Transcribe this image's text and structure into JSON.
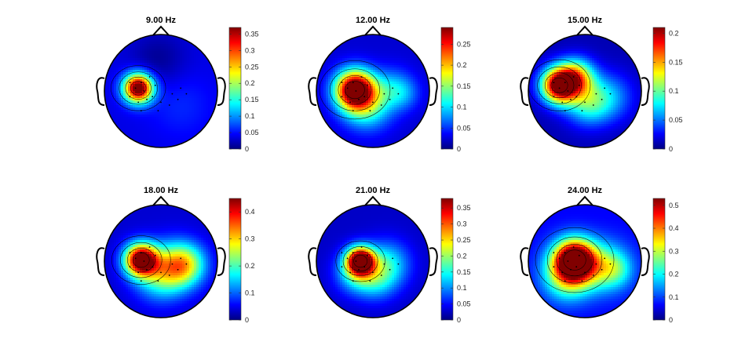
{
  "colors": {
    "colormap": "jet",
    "contour": "#000000",
    "outline": "#000000",
    "background": "#ffffff"
  },
  "chart_data": [
    {
      "type": "heatmap",
      "title": "9.00 Hz",
      "clim": [
        0,
        0.37
      ],
      "colorbar_ticks": [
        "0",
        "0.05",
        "0.1",
        "0.15",
        "0.2",
        "0.25",
        "0.3",
        "0.35"
      ],
      "colorbar_values": [
        0,
        0.05,
        0.1,
        0.15,
        0.2,
        0.25,
        0.3,
        0.35
      ],
      "peak_value": 0.37,
      "peak_location": "left central"
    },
    {
      "type": "heatmap",
      "title": "12.00 Hz",
      "clim": [
        0,
        0.29
      ],
      "colorbar_ticks": [
        "0",
        "0.05",
        "0.1",
        "0.15",
        "0.2",
        "0.25"
      ],
      "colorbar_values": [
        0,
        0.05,
        0.1,
        0.15,
        0.2,
        0.25
      ],
      "peak_value": 0.29,
      "peak_location": "left central"
    },
    {
      "type": "heatmap",
      "title": "15.00 Hz",
      "clim": [
        0,
        0.21
      ],
      "colorbar_ticks": [
        "0",
        "0.05",
        "0.1",
        "0.15",
        "0.2"
      ],
      "colorbar_values": [
        0,
        0.05,
        0.1,
        0.15,
        0.2
      ],
      "peak_value": 0.21,
      "peak_location": "left fronto-central"
    },
    {
      "type": "heatmap",
      "title": "18.00 Hz",
      "clim": [
        0,
        0.45
      ],
      "colorbar_ticks": [
        "0",
        "0.1",
        "0.2",
        "0.3",
        "0.4"
      ],
      "colorbar_values": [
        0,
        0.1,
        0.2,
        0.3,
        0.4
      ],
      "peak_value": 0.45,
      "peak_location": "left central"
    },
    {
      "type": "heatmap",
      "title": "21.00 Hz",
      "clim": [
        0,
        0.38
      ],
      "colorbar_ticks": [
        "0",
        "0.05",
        "0.1",
        "0.15",
        "0.2",
        "0.25",
        "0.3",
        "0.35"
      ],
      "colorbar_values": [
        0,
        0.05,
        0.1,
        0.15,
        0.2,
        0.25,
        0.3,
        0.35
      ],
      "peak_value": 0.38,
      "peak_location": "left central"
    },
    {
      "type": "heatmap",
      "title": "24.00 Hz",
      "clim": [
        0,
        0.53
      ],
      "colorbar_ticks": [
        "0",
        "0.1",
        "0.2",
        "0.3",
        "0.4",
        "0.5"
      ],
      "colorbar_values": [
        0,
        0.1,
        0.2,
        0.3,
        0.4,
        0.5
      ],
      "peak_value": 0.53,
      "peak_location": "left central"
    }
  ]
}
